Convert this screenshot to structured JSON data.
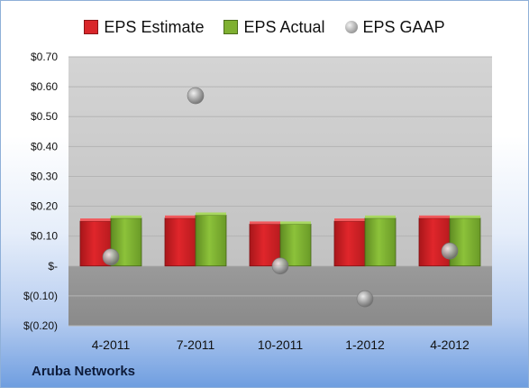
{
  "company": "Aruba Networks",
  "colors": {
    "estimate": "#d9262a",
    "actual": "#7fb031",
    "gaap": "#a9a9a9"
  },
  "chart_data": {
    "type": "bar",
    "categories": [
      "4-2011",
      "7-2011",
      "10-2011",
      "1-2012",
      "4-2012"
    ],
    "series": [
      {
        "name": "EPS Estimate",
        "type": "bar",
        "values": [
          0.15,
          0.16,
          0.14,
          0.15,
          0.16
        ]
      },
      {
        "name": "EPS Actual",
        "type": "bar",
        "values": [
          0.16,
          0.17,
          0.14,
          0.16,
          0.16
        ]
      },
      {
        "name": "EPS GAAP",
        "type": "scatter",
        "values": [
          0.03,
          0.57,
          0.0,
          -0.11,
          0.05
        ]
      }
    ],
    "ylim": [
      -0.2,
      0.7
    ],
    "yticks": [
      0.7,
      0.6,
      0.5,
      0.4,
      0.3,
      0.2,
      0.1,
      0.0,
      -0.1,
      -0.2
    ],
    "ytick_labels": [
      "$0.70",
      "$0.60",
      "$0.50",
      "$0.40",
      "$0.30",
      "$0.20",
      "$0.10",
      "$-",
      "$(0.10)",
      "$(0.20)"
    ],
    "title": "",
    "xlabel": "",
    "ylabel": "",
    "grid": true,
    "legend_position": "top"
  }
}
